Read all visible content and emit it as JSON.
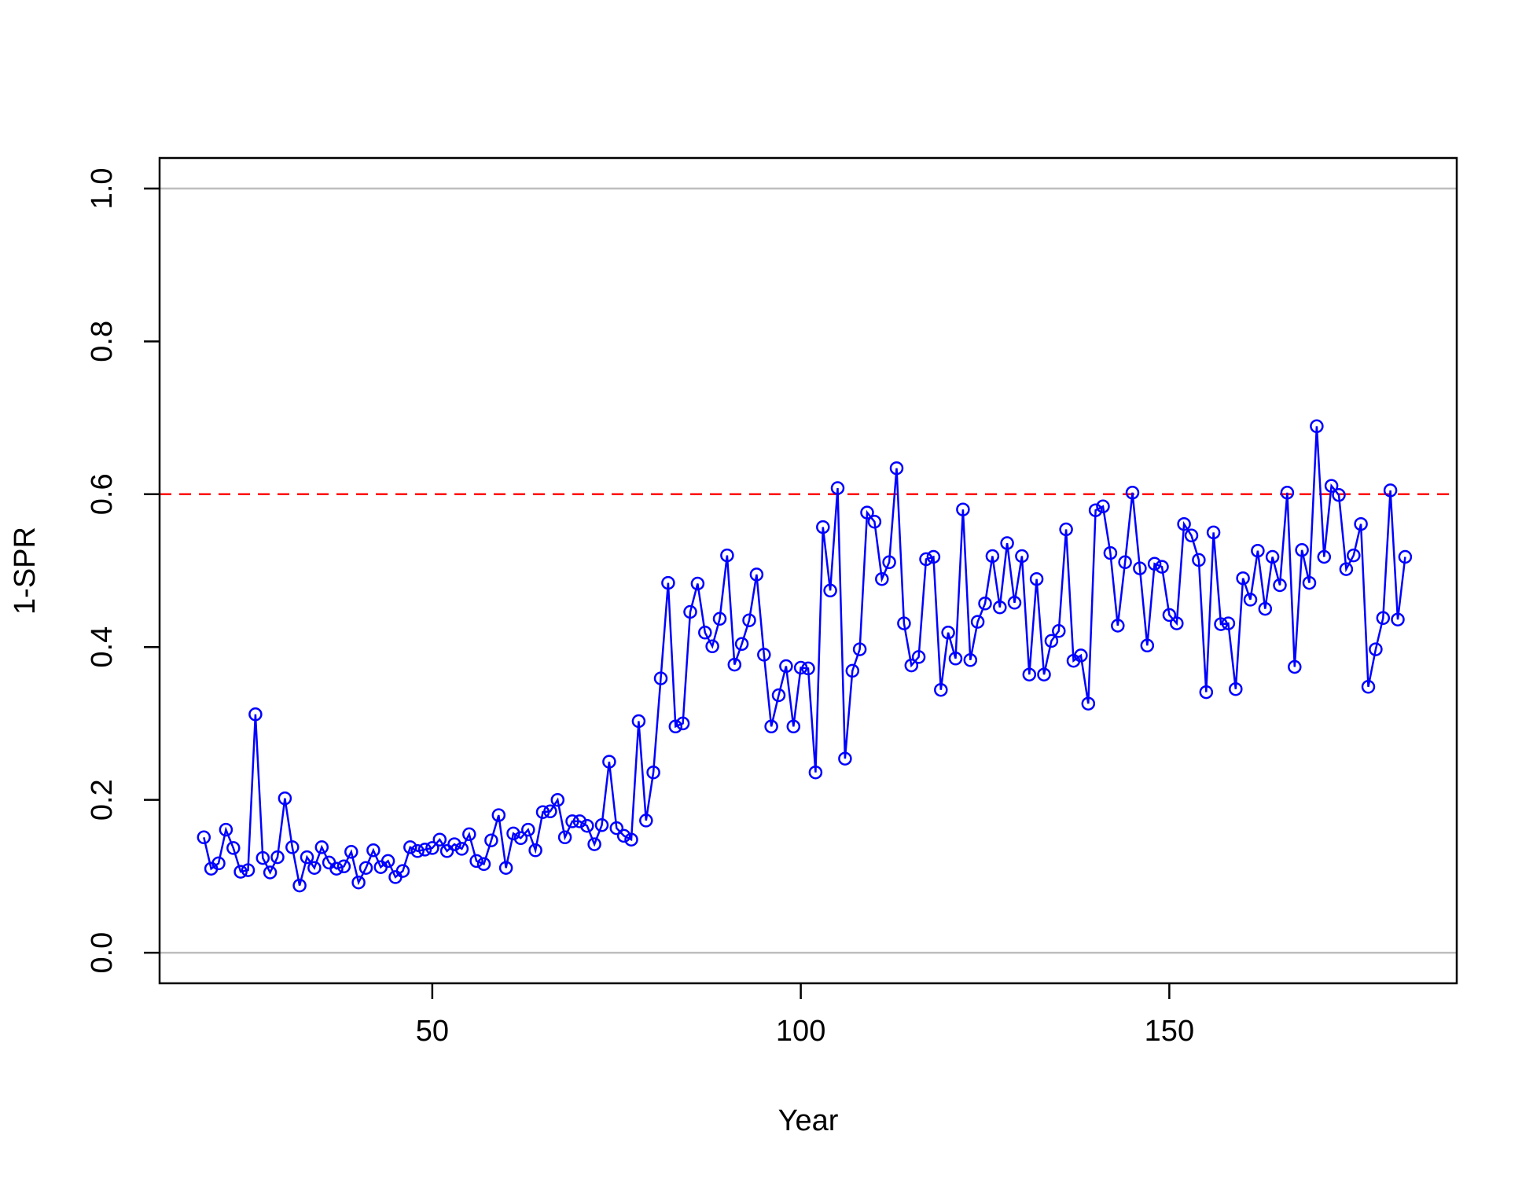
{
  "chart_data": {
    "type": "line",
    "xlabel": "Year",
    "ylabel": "1-SPR",
    "xlim": [
      13,
      189
    ],
    "ylim": [
      -0.04,
      1.04
    ],
    "x_ticks": [
      50,
      100,
      150
    ],
    "y_ticks": [
      0.0,
      0.2,
      0.4,
      0.6,
      0.8,
      1.0
    ],
    "x_tick_labels": [
      "50",
      "100",
      "150"
    ],
    "y_tick_labels": [
      "0.0",
      "0.2",
      "0.4",
      "0.6",
      "0.8",
      "1.0"
    ],
    "reference_lines": [
      {
        "y": 0.0,
        "color": "#bebebe",
        "style": "solid"
      },
      {
        "y": 1.0,
        "color": "#bebebe",
        "style": "solid"
      },
      {
        "y": 0.6,
        "color": "#ff0000",
        "style": "dashed"
      }
    ],
    "series": [
      {
        "color": "#0000ff",
        "marker": "open-circle",
        "x_start": 19,
        "x_step": 1,
        "values": [
          0.151,
          0.11,
          0.117,
          0.161,
          0.137,
          0.106,
          0.108,
          0.312,
          0.124,
          0.105,
          0.125,
          0.202,
          0.138,
          0.088,
          0.125,
          0.111,
          0.138,
          0.118,
          0.11,
          0.113,
          0.132,
          0.092,
          0.111,
          0.134,
          0.112,
          0.12,
          0.099,
          0.107,
          0.138,
          0.133,
          0.135,
          0.137,
          0.148,
          0.133,
          0.142,
          0.136,
          0.155,
          0.12,
          0.116,
          0.147,
          0.18,
          0.111,
          0.156,
          0.15,
          0.161,
          0.134,
          0.184,
          0.185,
          0.2,
          0.151,
          0.172,
          0.172,
          0.166,
          0.142,
          0.167,
          0.25,
          0.163,
          0.153,
          0.148,
          0.303,
          0.173,
          0.236,
          0.359,
          0.484,
          0.296,
          0.3,
          0.446,
          0.483,
          0.419,
          0.401,
          0.437,
          0.52,
          0.377,
          0.404,
          0.435,
          0.495,
          0.39,
          0.296,
          0.337,
          0.375,
          0.296,
          0.373,
          0.372,
          0.236,
          0.557,
          0.474,
          0.608,
          0.254,
          0.369,
          0.397,
          0.576,
          0.564,
          0.489,
          0.511,
          0.634,
          0.431,
          0.376,
          0.387,
          0.515,
          0.518,
          0.344,
          0.419,
          0.385,
          0.58,
          0.383,
          0.433,
          0.457,
          0.519,
          0.452,
          0.536,
          0.458,
          0.519,
          0.364,
          0.489,
          0.364,
          0.408,
          0.421,
          0.554,
          0.382,
          0.389,
          0.326,
          0.579,
          0.584,
          0.523,
          0.428,
          0.511,
          0.602,
          0.503,
          0.402,
          0.509,
          0.505,
          0.442,
          0.431,
          0.561,
          0.546,
          0.514,
          0.341,
          0.55,
          0.43,
          0.431,
          0.345,
          0.49,
          0.462,
          0.526,
          0.45,
          0.518,
          0.481,
          0.602,
          0.374,
          0.527,
          0.484,
          0.689,
          0.518,
          0.611,
          0.599,
          0.502,
          0.52,
          0.561,
          0.348,
          0.397,
          0.438,
          0.605,
          0.436,
          0.518
        ]
      }
    ]
  }
}
